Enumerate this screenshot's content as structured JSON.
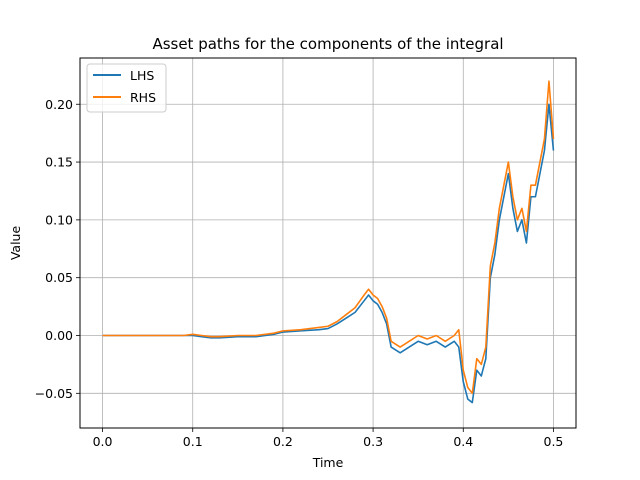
{
  "chart_data": {
    "type": "line",
    "title": "Asset paths for the components of the integral",
    "xlabel": "Time",
    "ylabel": "Value",
    "xlim": [
      -0.025,
      0.525
    ],
    "ylim": [
      -0.08,
      0.24
    ],
    "grid": true,
    "legend_position": "top-left",
    "x_ticks": [
      {
        "value": 0.0,
        "label": "0.0"
      },
      {
        "value": 0.1,
        "label": "0.1"
      },
      {
        "value": 0.2,
        "label": "0.2"
      },
      {
        "value": 0.3,
        "label": "0.3"
      },
      {
        "value": 0.4,
        "label": "0.4"
      },
      {
        "value": 0.5,
        "label": "0.5"
      }
    ],
    "y_ticks": [
      {
        "value": -0.05,
        "label": "−0.05"
      },
      {
        "value": 0.0,
        "label": "0.00"
      },
      {
        "value": 0.05,
        "label": "0.05"
      },
      {
        "value": 0.1,
        "label": "0.10"
      },
      {
        "value": 0.15,
        "label": "0.15"
      },
      {
        "value": 0.2,
        "label": "0.20"
      }
    ],
    "series": [
      {
        "name": "LHS",
        "color": "#1f77b4",
        "x": [
          0.0,
          0.05,
          0.09,
          0.1,
          0.11,
          0.12,
          0.13,
          0.15,
          0.17,
          0.19,
          0.2,
          0.22,
          0.24,
          0.25,
          0.26,
          0.27,
          0.28,
          0.29,
          0.295,
          0.3,
          0.305,
          0.31,
          0.315,
          0.32,
          0.33,
          0.34,
          0.35,
          0.36,
          0.37,
          0.38,
          0.39,
          0.395,
          0.4,
          0.405,
          0.41,
          0.415,
          0.42,
          0.425,
          0.43,
          0.435,
          0.44,
          0.445,
          0.45,
          0.455,
          0.46,
          0.465,
          0.47,
          0.475,
          0.48,
          0.485,
          0.49,
          0.495,
          0.5
        ],
        "y": [
          0.0,
          0.0,
          0.0,
          0.0,
          -0.001,
          -0.002,
          -0.002,
          -0.001,
          -0.001,
          0.001,
          0.003,
          0.004,
          0.005,
          0.006,
          0.01,
          0.015,
          0.02,
          0.03,
          0.035,
          0.03,
          0.027,
          0.02,
          0.01,
          -0.01,
          -0.015,
          -0.01,
          -0.005,
          -0.008,
          -0.005,
          -0.01,
          -0.005,
          -0.01,
          -0.04,
          -0.055,
          -0.058,
          -0.03,
          -0.035,
          -0.02,
          0.05,
          0.07,
          0.1,
          0.12,
          0.14,
          0.11,
          0.09,
          0.1,
          0.08,
          0.12,
          0.12,
          0.14,
          0.16,
          0.2,
          0.16
        ]
      },
      {
        "name": "RHS",
        "color": "#ff7f0e",
        "x": [
          0.0,
          0.05,
          0.09,
          0.1,
          0.11,
          0.12,
          0.13,
          0.15,
          0.17,
          0.19,
          0.2,
          0.22,
          0.24,
          0.25,
          0.26,
          0.27,
          0.28,
          0.29,
          0.295,
          0.3,
          0.305,
          0.31,
          0.315,
          0.32,
          0.33,
          0.34,
          0.35,
          0.36,
          0.37,
          0.38,
          0.39,
          0.395,
          0.4,
          0.405,
          0.41,
          0.415,
          0.42,
          0.425,
          0.43,
          0.435,
          0.44,
          0.445,
          0.45,
          0.455,
          0.46,
          0.465,
          0.47,
          0.475,
          0.48,
          0.485,
          0.49,
          0.495,
          0.5
        ],
        "y": [
          0.0,
          0.0,
          0.0,
          0.001,
          0.0,
          -0.001,
          -0.001,
          0.0,
          0.0,
          0.002,
          0.004,
          0.005,
          0.007,
          0.008,
          0.012,
          0.018,
          0.024,
          0.035,
          0.04,
          0.035,
          0.032,
          0.025,
          0.015,
          -0.005,
          -0.01,
          -0.005,
          0.0,
          -0.003,
          0.0,
          -0.005,
          0.0,
          0.005,
          -0.03,
          -0.045,
          -0.05,
          -0.02,
          -0.025,
          -0.01,
          0.06,
          0.08,
          0.11,
          0.13,
          0.15,
          0.12,
          0.1,
          0.11,
          0.09,
          0.13,
          0.13,
          0.15,
          0.17,
          0.22,
          0.17
        ]
      }
    ]
  }
}
